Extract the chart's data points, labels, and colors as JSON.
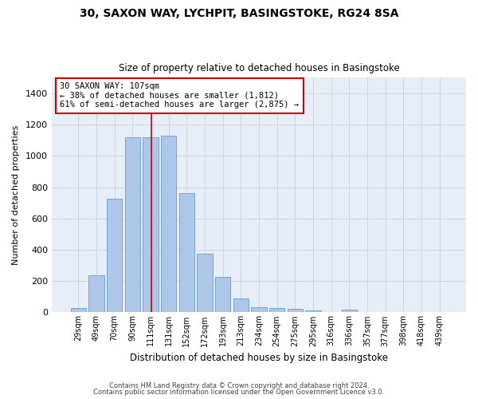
{
  "title1": "30, SAXON WAY, LYCHPIT, BASINGSTOKE, RG24 8SA",
  "title2": "Size of property relative to detached houses in Basingstoke",
  "xlabel": "Distribution of detached houses by size in Basingstoke",
  "ylabel": "Number of detached properties",
  "categories": [
    "29sqm",
    "49sqm",
    "70sqm",
    "90sqm",
    "111sqm",
    "131sqm",
    "152sqm",
    "172sqm",
    "193sqm",
    "213sqm",
    "234sqm",
    "254sqm",
    "275sqm",
    "295sqm",
    "316sqm",
    "336sqm",
    "357sqm",
    "377sqm",
    "398sqm",
    "418sqm",
    "439sqm"
  ],
  "values": [
    30,
    235,
    725,
    1120,
    1120,
    1130,
    760,
    375,
    225,
    90,
    35,
    25,
    20,
    13,
    0,
    15,
    0,
    0,
    0,
    0,
    0
  ],
  "bar_color": "#aec6e8",
  "bar_edge_color": "#5a9fd4",
  "annotation_line1": "30 SAXON WAY: 107sqm",
  "annotation_line2": "← 38% of detached houses are smaller (1,812)",
  "annotation_line3": "61% of semi-detached houses are larger (2,875) →",
  "vline_x_index": 4.07,
  "vline_color": "#cc0000",
  "box_color": "#cc0000",
  "ylim": [
    0,
    1500
  ],
  "yticks": [
    0,
    200,
    400,
    600,
    800,
    1000,
    1200,
    1400
  ],
  "footer1": "Contains HM Land Registry data © Crown copyright and database right 2024.",
  "footer2": "Contains public sector information licensed under the Open Government Licence v3.0.",
  "bg_color": "#ffffff",
  "axes_bg_color": "#e8eef8",
  "grid_color": "#c8cfd8"
}
